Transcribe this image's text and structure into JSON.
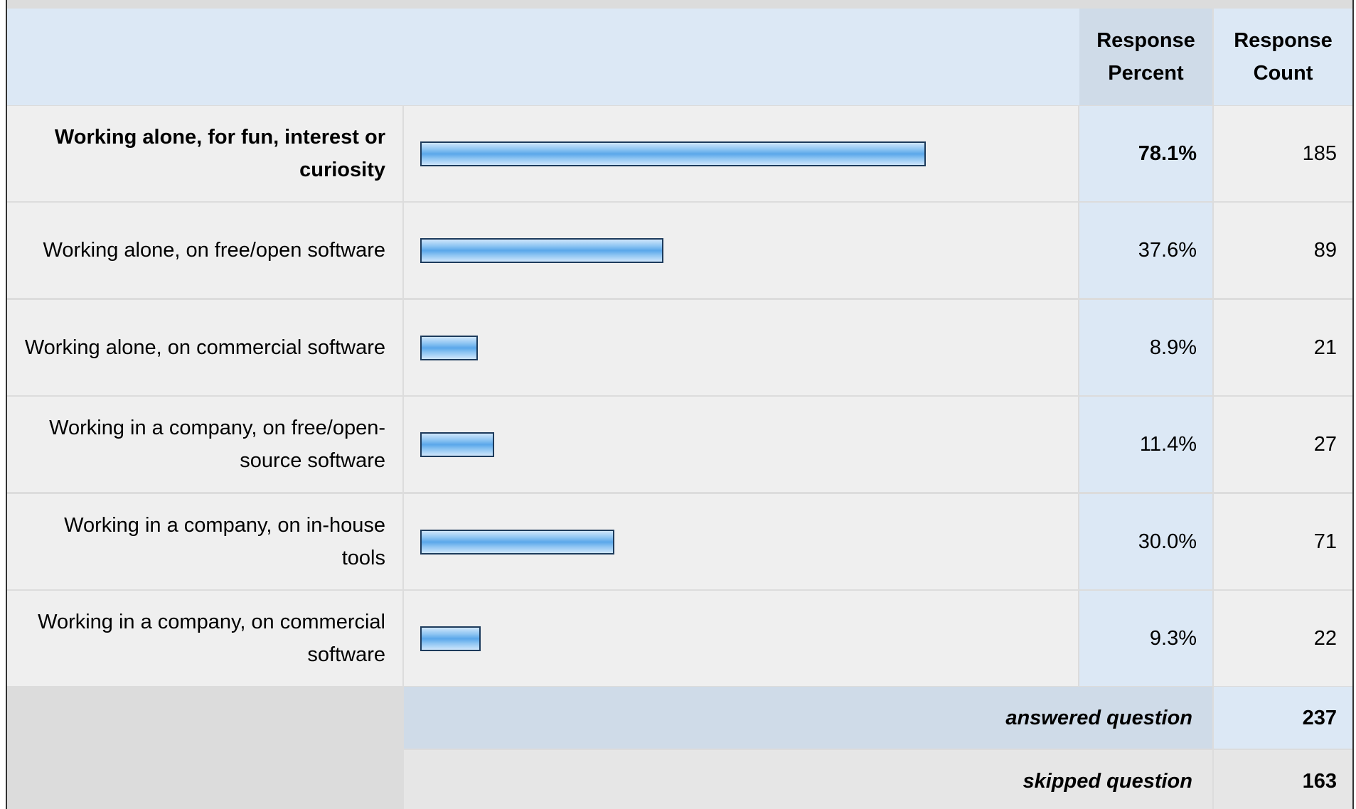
{
  "table": {
    "headers": [
      "Response Percent",
      "Response Count"
    ],
    "rows": [
      {
        "label": "Working alone, for fun, interest or curiosity",
        "count": 185
      },
      {
        "label": "Working alone, on free/open software",
        "count": 89
      },
      {
        "label": "Working alone, on commercial software",
        "count": 21
      },
      {
        "label": "Working in a company, on free/open-source software",
        "count": 27
      },
      {
        "label": "Working in a company, on in-house tools",
        "count": 71
      },
      {
        "label": "Working in a company, on commercial software",
        "count": 22
      }
    ],
    "values": [
      78.1,
      37.6,
      8.9,
      11.4,
      30.0,
      9.3
    ],
    "value_labels": [
      "78.1%",
      "37.6%",
      "8.9%",
      "11.4%",
      "30.0%",
      "9.3%"
    ],
    "footer": [
      {
        "label": "answered question",
        "count": 237
      },
      {
        "label": "skipped question",
        "count": 163
      }
    ]
  }
}
